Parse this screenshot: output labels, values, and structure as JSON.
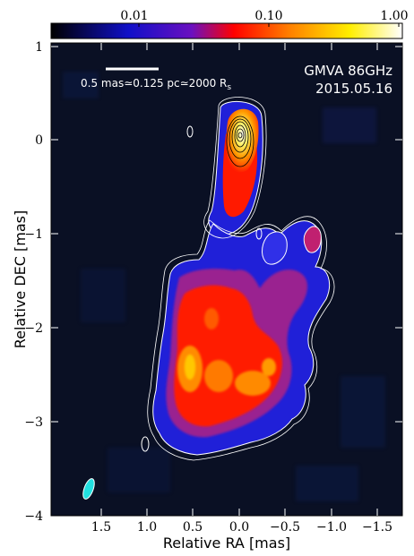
{
  "figure": {
    "colorbar": {
      "ticks": [
        "0.01",
        "0.10",
        "1.00"
      ],
      "scale": "log",
      "colors": [
        "#000000",
        "#1a1aff",
        "#ff0000",
        "#ffee00",
        "#ffffff"
      ]
    },
    "annotation": {
      "line1": "GMVA 86GHz",
      "line2": "2015.05.16"
    },
    "scalebar": {
      "label": "0.5 mas≃0.125 pc≃2000 R",
      "subscript": "s"
    },
    "x_axis": {
      "label": "Relative RA [mas]",
      "ticks": [
        "1.5",
        "1.0",
        "0.5",
        "0.0",
        "−0.5",
        "−1.0",
        "−1.5"
      ]
    },
    "y_axis": {
      "label": "Relative DEC [mas]",
      "ticks": [
        "1",
        "0",
        "−1",
        "−2",
        "−3",
        "−4"
      ]
    },
    "beam_color": "#22e0e0",
    "background_color": "#0a1024"
  }
}
